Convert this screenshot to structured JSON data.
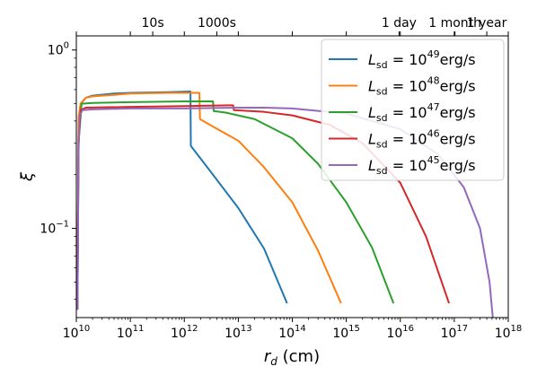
{
  "chart_data": {
    "type": "line",
    "xscale": "log",
    "yscale": "log",
    "xlim": [
      10000000000.0,
      1e+18
    ],
    "ylim": [
      0.0316,
      1.2
    ],
    "grid": false,
    "legend_position": "top-right",
    "xlabel": {
      "base": "r",
      "sub": "d",
      "rest": " (cm)"
    },
    "ylabel": "ξ",
    "x_ticks": [
      {
        "value": 10000000000.0,
        "base": "10",
        "exp": "10"
      },
      {
        "value": 100000000000.0,
        "base": "10",
        "exp": "11"
      },
      {
        "value": 1000000000000.0,
        "base": "10",
        "exp": "12"
      },
      {
        "value": 10000000000000.0,
        "base": "10",
        "exp": "13"
      },
      {
        "value": 100000000000000.0,
        "base": "10",
        "exp": "14"
      },
      {
        "value": 1000000000000000.0,
        "base": "10",
        "exp": "15"
      },
      {
        "value": 1e+16,
        "base": "10",
        "exp": "16"
      },
      {
        "value": 1e+17,
        "base": "10",
        "exp": "17"
      },
      {
        "value": 1e+18,
        "base": "10",
        "exp": "18"
      }
    ],
    "y_ticks": [
      {
        "value": 1,
        "base": "10",
        "exp": "0"
      },
      {
        "value": 0.1,
        "base": "10",
        "exp": "−1"
      }
    ],
    "top_ticks": [
      {
        "value": 260000000000.0,
        "label": "10s"
      },
      {
        "value": 4000000000000.0,
        "label": "1000s"
      },
      {
        "value": 9500000000000000.0,
        "label": "1 day"
      },
      {
        "value": 1.03e+17,
        "label": "1 month"
      },
      {
        "value": 4e+17,
        "label": "1 year"
      }
    ],
    "series": [
      {
        "label": {
          "L": "L",
          "sub": "sd",
          "eq": " = 10",
          "exp": "49",
          "unit": "erg/s"
        },
        "color": "#1f77b4",
        "points": [
          [
            10500000000.0,
            0.035
          ],
          [
            11000000000.0,
            0.4
          ],
          [
            12000000000.0,
            0.5
          ],
          [
            15000000000.0,
            0.54
          ],
          [
            20000000000.0,
            0.555
          ],
          [
            50000000000.0,
            0.57
          ],
          [
            100000000000.0,
            0.575
          ],
          [
            500000000000.0,
            0.58
          ],
          [
            1300000000000.0,
            0.585
          ],
          [
            1320000000000.0,
            0.29
          ],
          [
            3000000000000.0,
            0.21
          ],
          [
            10000000000000.0,
            0.13
          ],
          [
            30000000000000.0,
            0.077
          ],
          [
            80000000000000.0,
            0.038
          ]
        ]
      },
      {
        "label": {
          "L": "L",
          "sub": "sd",
          "eq": " = 10",
          "exp": "48",
          "unit": "erg/s"
        },
        "color": "#ff7f0e",
        "points": [
          [
            10500000000.0,
            0.035
          ],
          [
            11000000000.0,
            0.42
          ],
          [
            12000000000.0,
            0.5
          ],
          [
            15000000000.0,
            0.54
          ],
          [
            20000000000.0,
            0.55
          ],
          [
            50000000000.0,
            0.56
          ],
          [
            100000000000.0,
            0.57
          ],
          [
            500000000000.0,
            0.575
          ],
          [
            1000000000000.0,
            0.575
          ],
          [
            1900000000000.0,
            0.575
          ],
          [
            1950000000000.0,
            0.41
          ],
          [
            3000000000000.0,
            0.38
          ],
          [
            10000000000000.0,
            0.31
          ],
          [
            30000000000000.0,
            0.22
          ],
          [
            100000000000000.0,
            0.14
          ],
          [
            300000000000000.0,
            0.075
          ],
          [
            800000000000000.0,
            0.038
          ]
        ]
      },
      {
        "label": {
          "L": "L",
          "sub": "sd",
          "eq": " = 10",
          "exp": "47",
          "unit": "erg/s"
        },
        "color": "#2ca02c",
        "points": [
          [
            10500000000.0,
            0.035
          ],
          [
            11000000000.0,
            0.3
          ],
          [
            12500000000.0,
            0.5
          ],
          [
            20000000000.0,
            0.505
          ],
          [
            100000000000.0,
            0.51
          ],
          [
            1000000000000.0,
            0.515
          ],
          [
            3400000000000.0,
            0.515
          ],
          [
            3500000000000.0,
            0.455
          ],
          [
            6000000000000.0,
            0.445
          ],
          [
            20000000000000.0,
            0.41
          ],
          [
            100000000000000.0,
            0.32
          ],
          [
            300000000000000.0,
            0.23
          ],
          [
            1000000000000000.0,
            0.14
          ],
          [
            3000000000000000.0,
            0.078
          ],
          [
            7500000000000000.0,
            0.038
          ]
        ]
      },
      {
        "label": {
          "L": "L",
          "sub": "sd",
          "eq": " = 10",
          "exp": "46",
          "unit": "erg/s"
        },
        "color": "#d62728",
        "points": [
          [
            10500000000.0,
            0.035
          ],
          [
            11000000000.0,
            0.3
          ],
          [
            12000000000.0,
            0.46
          ],
          [
            15000000000.0,
            0.475
          ],
          [
            100000000000.0,
            0.48
          ],
          [
            1000000000000.0,
            0.485
          ],
          [
            8000000000000.0,
            0.49
          ],
          [
            8300000000000.0,
            0.46
          ],
          [
            30000000000000.0,
            0.45
          ],
          [
            100000000000000.0,
            0.43
          ],
          [
            500000000000000.0,
            0.38
          ],
          [
            2000000000000000.0,
            0.3
          ],
          [
            1e+16,
            0.18
          ],
          [
            3e+16,
            0.09
          ],
          [
            8e+16,
            0.038
          ]
        ]
      },
      {
        "label": {
          "L": "L",
          "sub": "sd",
          "eq": " = 10",
          "exp": "45",
          "unit": "erg/s"
        },
        "color": "#9467bd",
        "points": [
          [
            10500000000.0,
            0.035
          ],
          [
            11000000000.0,
            0.27
          ],
          [
            11500000000.0,
            0.43
          ],
          [
            13000000000.0,
            0.46
          ],
          [
            20000000000.0,
            0.465
          ],
          [
            100000000000.0,
            0.47
          ],
          [
            1000000000000.0,
            0.47
          ],
          [
            10000000000000.0,
            0.475
          ],
          [
            30000000000000.0,
            0.475
          ],
          [
            100000000000000.0,
            0.47
          ],
          [
            1000000000000000.0,
            0.44
          ],
          [
            1e+16,
            0.36
          ],
          [
            5e+16,
            0.26
          ],
          [
            1.5e+17,
            0.17
          ],
          [
            3e+17,
            0.1
          ],
          [
            4.5e+17,
            0.05
          ],
          [
            5.2e+17,
            0.031
          ]
        ]
      }
    ]
  }
}
